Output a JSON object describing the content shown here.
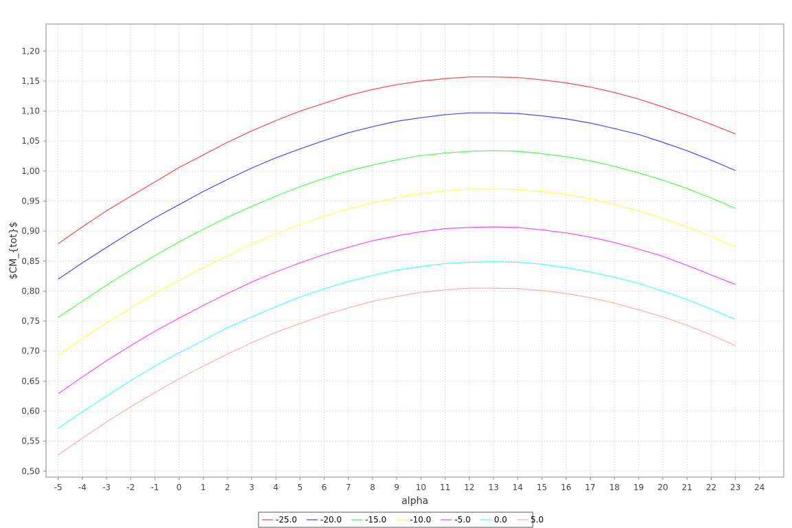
{
  "chart_data": {
    "type": "line",
    "title": "",
    "xlabel": "alpha",
    "ylabel": "$CM_{tot}$",
    "xlim": [
      -5.5,
      25
    ],
    "ylim": [
      0.49,
      1.245
    ],
    "x_ticks": [
      -5,
      -4,
      -3,
      -2,
      -1,
      0,
      1,
      2,
      3,
      4,
      5,
      6,
      7,
      8,
      9,
      10,
      11,
      12,
      13,
      14,
      15,
      16,
      17,
      18,
      19,
      20,
      21,
      22,
      23,
      24
    ],
    "y_ticks": [
      0.5,
      0.55,
      0.6,
      0.65,
      0.7,
      0.75,
      0.8,
      0.85,
      0.9,
      0.95,
      1.0,
      1.05,
      1.1,
      1.15,
      1.2
    ],
    "y_tick_labels": [
      "0,50",
      "0,55",
      "0,60",
      "0,65",
      "0,70",
      "0,75",
      "0,80",
      "0,85",
      "0,90",
      "0,95",
      "1,00",
      "1,05",
      "1,10",
      "1,15",
      "1,20"
    ],
    "grid": true,
    "legend_position": "bottom",
    "x": [
      -5,
      -4,
      -3,
      -2,
      -1,
      0,
      1,
      2,
      3,
      4,
      5,
      6,
      7,
      8,
      9,
      10,
      11,
      12,
      13,
      14,
      15,
      16,
      17,
      18,
      19,
      20,
      21,
      22,
      23
    ],
    "series": [
      {
        "name": "-25.0",
        "color": "#ff4444",
        "values": [
          0.879,
          0.907,
          0.934,
          0.958,
          0.982,
          1.006,
          1.027,
          1.048,
          1.067,
          1.084,
          1.1,
          1.113,
          1.126,
          1.136,
          1.144,
          1.15,
          1.154,
          1.157,
          1.157,
          1.156,
          1.152,
          1.147,
          1.14,
          1.131,
          1.12,
          1.107,
          1.093,
          1.078,
          1.062
        ]
      },
      {
        "name": "-20.0",
        "color": "#4444ff",
        "values": [
          0.82,
          0.847,
          0.873,
          0.898,
          0.922,
          0.944,
          0.966,
          0.986,
          1.005,
          1.022,
          1.037,
          1.051,
          1.064,
          1.074,
          1.083,
          1.089,
          1.094,
          1.097,
          1.097,
          1.096,
          1.092,
          1.087,
          1.08,
          1.071,
          1.061,
          1.048,
          1.034,
          1.018,
          1.001
        ]
      },
      {
        "name": "-15.0",
        "color": "#44ff44",
        "values": [
          0.756,
          0.783,
          0.81,
          0.835,
          0.859,
          0.882,
          0.903,
          0.923,
          0.941,
          0.958,
          0.974,
          0.988,
          1.0,
          1.01,
          1.019,
          1.026,
          1.03,
          1.033,
          1.034,
          1.033,
          1.029,
          1.024,
          1.017,
          1.008,
          0.997,
          0.985,
          0.971,
          0.955,
          0.938
        ]
      },
      {
        "name": "-10.0",
        "color": "#ffff44",
        "values": [
          0.693,
          0.721,
          0.747,
          0.772,
          0.796,
          0.818,
          0.839,
          0.859,
          0.878,
          0.895,
          0.911,
          0.925,
          0.937,
          0.947,
          0.956,
          0.962,
          0.967,
          0.97,
          0.97,
          0.969,
          0.966,
          0.961,
          0.954,
          0.944,
          0.934,
          0.921,
          0.907,
          0.891,
          0.874
        ]
      },
      {
        "name": "-5.0",
        "color": "#ff44ff",
        "values": [
          0.629,
          0.657,
          0.684,
          0.709,
          0.733,
          0.755,
          0.776,
          0.796,
          0.815,
          0.832,
          0.847,
          0.861,
          0.873,
          0.884,
          0.892,
          0.899,
          0.904,
          0.906,
          0.907,
          0.906,
          0.902,
          0.897,
          0.89,
          0.881,
          0.87,
          0.858,
          0.843,
          0.827,
          0.811
        ]
      },
      {
        "name": "0.0",
        "color": "#44ffff",
        "values": [
          0.571,
          0.599,
          0.625,
          0.651,
          0.675,
          0.697,
          0.718,
          0.739,
          0.757,
          0.774,
          0.79,
          0.804,
          0.816,
          0.826,
          0.835,
          0.841,
          0.846,
          0.848,
          0.849,
          0.848,
          0.845,
          0.839,
          0.832,
          0.823,
          0.813,
          0.8,
          0.786,
          0.77,
          0.753
        ]
      },
      {
        "name": "5.0",
        "color": "#ffaaaa",
        "values": [
          0.527,
          0.555,
          0.582,
          0.607,
          0.631,
          0.654,
          0.675,
          0.695,
          0.714,
          0.731,
          0.746,
          0.76,
          0.772,
          0.783,
          0.791,
          0.798,
          0.802,
          0.805,
          0.805,
          0.804,
          0.801,
          0.796,
          0.789,
          0.78,
          0.769,
          0.757,
          0.743,
          0.727,
          0.709
        ]
      }
    ]
  }
}
